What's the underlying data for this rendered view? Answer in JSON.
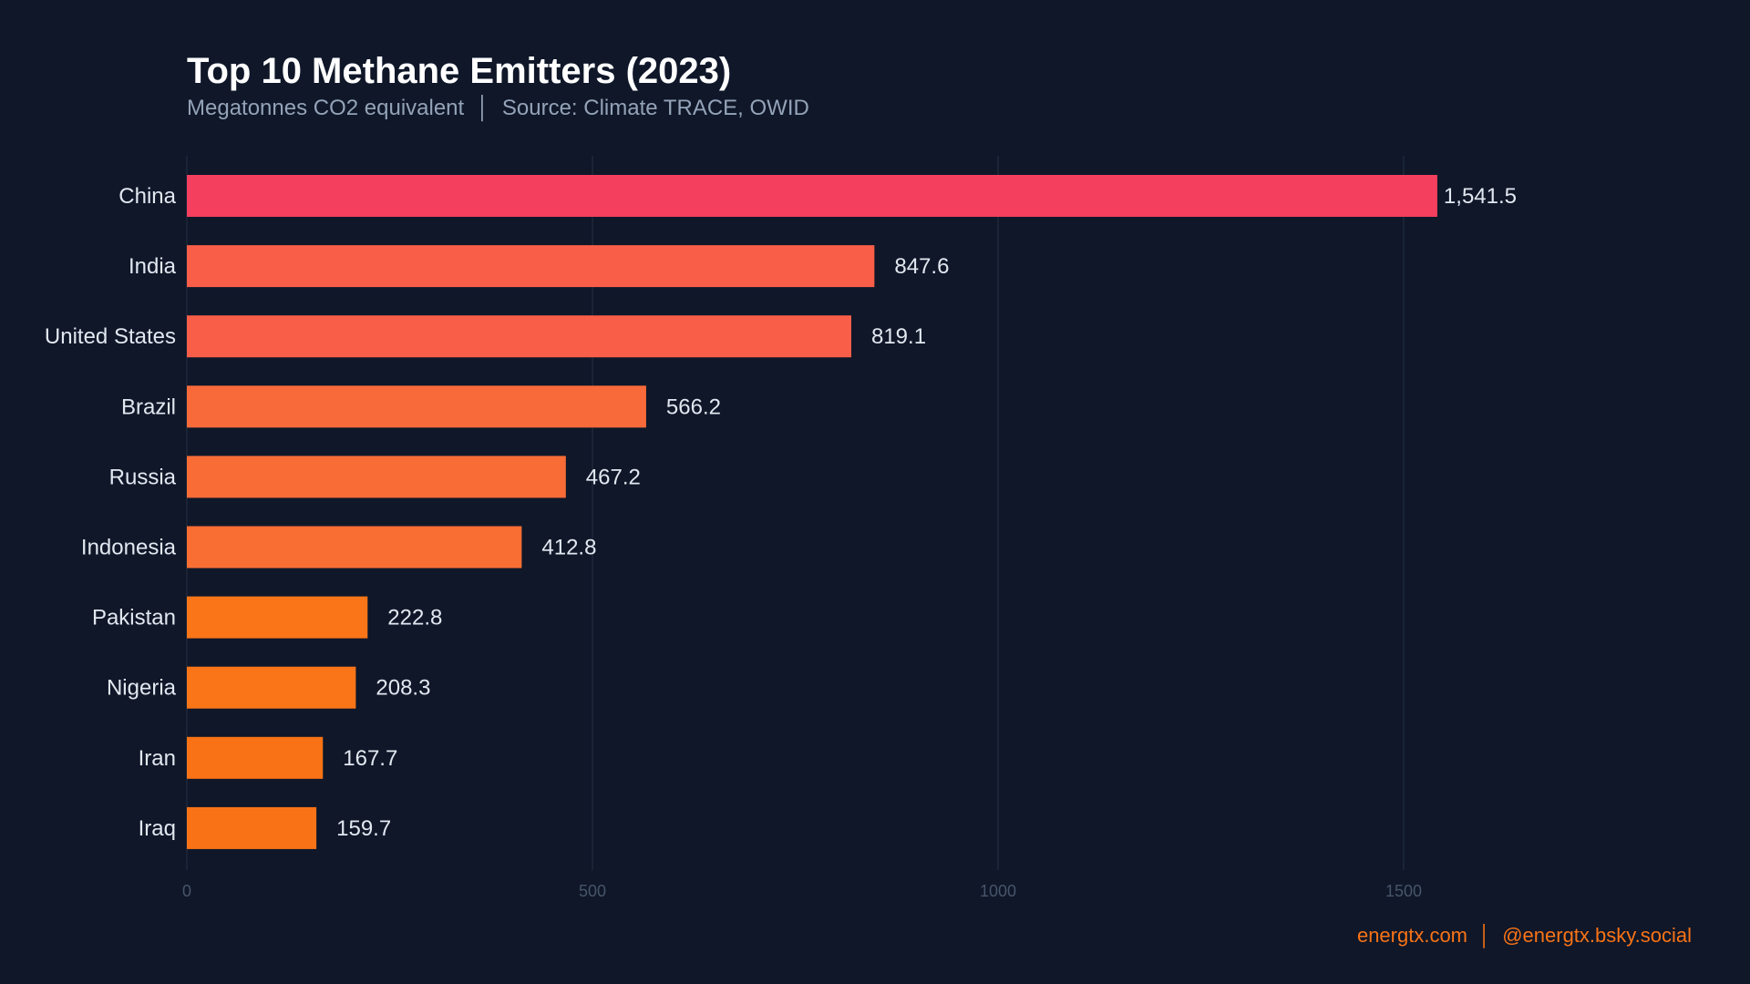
{
  "chart_data": {
    "type": "bar",
    "orientation": "horizontal",
    "title": "Top 10 Methane Emitters (2023)",
    "subtitle": "Megatonnes CO2 equivalent  │  Source: Climate TRACE, OWID",
    "categories": [
      "China",
      "India",
      "United States",
      "Brazil",
      "Russia",
      "Indonesia",
      "Pakistan",
      "Nigeria",
      "Iran",
      "Iraq"
    ],
    "values": [
      1541.5,
      847.6,
      819.1,
      566.2,
      467.2,
      412.8,
      222.8,
      208.3,
      167.7,
      159.7
    ],
    "data_labels": [
      "1,541.5",
      "847.6",
      "819.1",
      "566.2",
      "467.2",
      "412.8",
      "222.8",
      "208.3",
      "167.7",
      "159.7"
    ],
    "bar_colors": [
      "#f43f5e",
      "#f85e48",
      "#f85e48",
      "#f96a3a",
      "#f96c36",
      "#f96e33",
      "#f97518",
      "#f97518",
      "#f97316",
      "#f97316"
    ],
    "xticks": [
      0,
      500,
      1000,
      1500
    ],
    "xtick_labels": [
      "0",
      "500",
      "1000",
      "1500"
    ],
    "xlim": [
      0,
      1850
    ],
    "grid": "vertical",
    "xlabel": "",
    "ylabel": ""
  },
  "footer": "energtx.com  │  @energtx.bsky.social",
  "colors": {
    "background": "#0f1729",
    "grid": "#1e293b",
    "accent": "#f97316"
  }
}
